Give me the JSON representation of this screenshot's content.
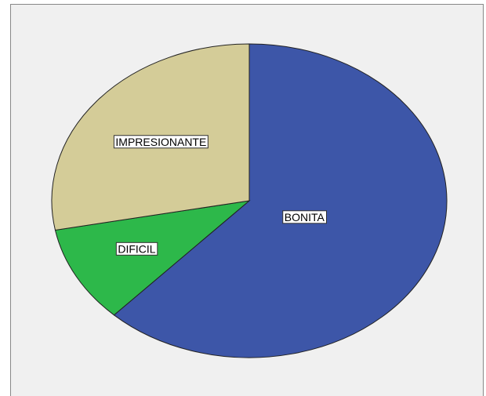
{
  "chart_data": {
    "type": "pie",
    "categories": [
      "BONITA",
      "DIFICIL",
      "IMPRESIONANTE"
    ],
    "values": [
      62,
      10,
      28
    ],
    "colors": [
      "#3d56a8",
      "#2db84a",
      "#d4cc98"
    ]
  }
}
